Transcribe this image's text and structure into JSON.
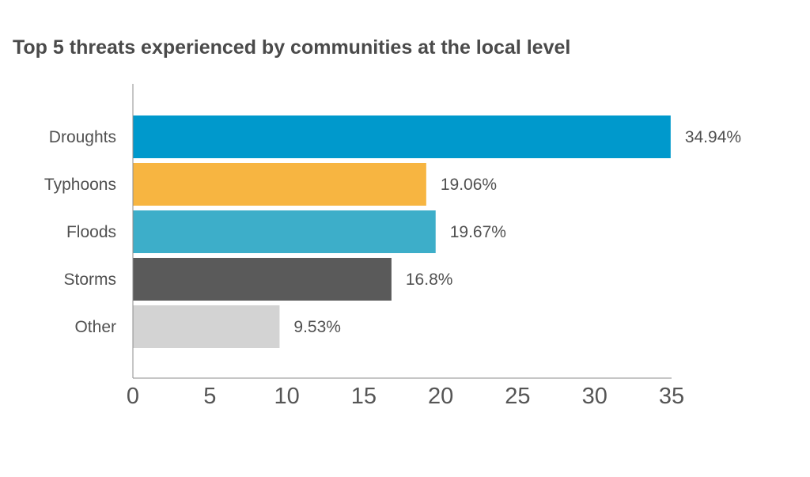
{
  "chart_data": {
    "type": "bar",
    "orientation": "horizontal",
    "title": "Top 5 threats experienced by communities at the local level",
    "categories": [
      "Droughts",
      "Typhoons",
      "Floods",
      "Storms",
      "Other"
    ],
    "values": [
      34.94,
      19.06,
      19.67,
      16.8,
      9.53
    ],
    "value_labels": [
      "34.94%",
      "19.06%",
      "19.67%",
      "16.8%",
      "9.53%"
    ],
    "colors": [
      "#0099cc",
      "#f7b541",
      "#3daec9",
      "#5a5a5a",
      "#d3d3d3"
    ],
    "xlim": [
      0,
      35
    ],
    "xticks": [
      0,
      5,
      10,
      15,
      20,
      25,
      30,
      35
    ],
    "xlabel": "",
    "ylabel": "",
    "grid": false,
    "legend": "none"
  }
}
